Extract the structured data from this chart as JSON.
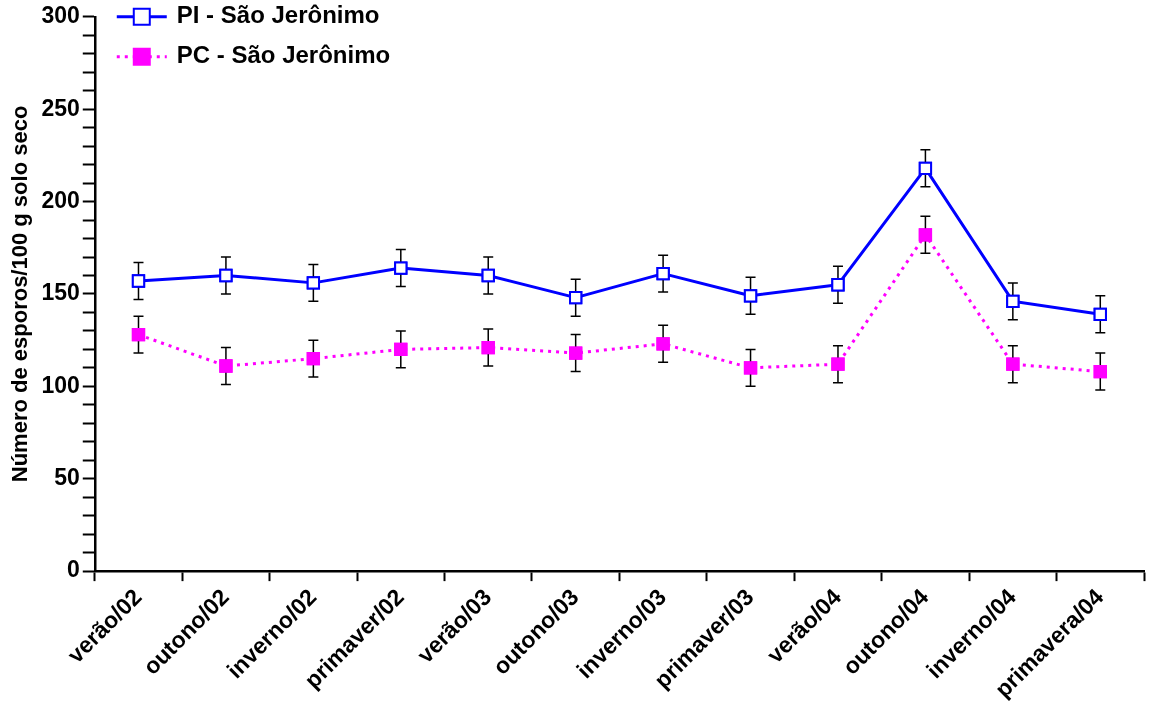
{
  "chart_data": {
    "type": "line",
    "ylabel": "Número de esporos/100 g solo seco",
    "categories": [
      "verão/02",
      "outono/02",
      "inverno/02",
      "primaver/02",
      "verão/03",
      "outono/03",
      "inverno/03",
      "primaver/03",
      "verão/04",
      "outono/04",
      "inverno/04",
      "primavera/04"
    ],
    "series": [
      {
        "name": "PI - São Jerônimo",
        "color": "#0000ff",
        "line_style": "solid",
        "values": [
          157,
          160,
          156,
          164,
          160,
          148,
          161,
          149,
          155,
          218,
          146,
          139
        ],
        "errors": [
          10,
          10,
          10,
          10,
          10,
          10,
          10,
          10,
          10,
          10,
          10,
          10
        ]
      },
      {
        "name": "PC - São Jerônimo",
        "color": "#ff00ff",
        "line_style": "dotted",
        "values": [
          128,
          111,
          115,
          120,
          121,
          118,
          123,
          110,
          112,
          182,
          112,
          108
        ],
        "errors": [
          10,
          10,
          10,
          10,
          10,
          10,
          10,
          10,
          10,
          10,
          10,
          10
        ]
      }
    ],
    "marker": "square",
    "ylim": [
      0,
      300
    ],
    "yticks": [
      0,
      {
        "value": 10,
        "label": null
      },
      {
        "value": 20,
        "label": null
      },
      {
        "value": 30,
        "label": null
      },
      {
        "value": 40,
        "label": null
      },
      50,
      {
        "value": 60,
        "label": null
      },
      {
        "value": 70,
        "label": null
      },
      {
        "value": 80,
        "label": null
      },
      {
        "value": 90,
        "label": null
      },
      100,
      {
        "value": 110,
        "label": null
      },
      {
        "value": 120,
        "label": null
      },
      {
        "value": 130,
        "label": null
      },
      {
        "value": 140,
        "label": null
      },
      150,
      {
        "value": 160,
        "label": null
      },
      {
        "value": 170,
        "label": null
      },
      {
        "value": 180,
        "label": null
      },
      {
        "value": 190,
        "label": null
      },
      200,
      {
        "value": 210,
        "label": null
      },
      {
        "value": 220,
        "label": null
      },
      {
        "value": 230,
        "label": null
      },
      {
        "value": 240,
        "label": null
      },
      250,
      {
        "value": 260,
        "label": null
      },
      {
        "value": 270,
        "label": null
      },
      {
        "value": 280,
        "label": null
      },
      {
        "value": 290,
        "label": null
      },
      300
    ],
    "grid": false,
    "legend": "top left"
  }
}
